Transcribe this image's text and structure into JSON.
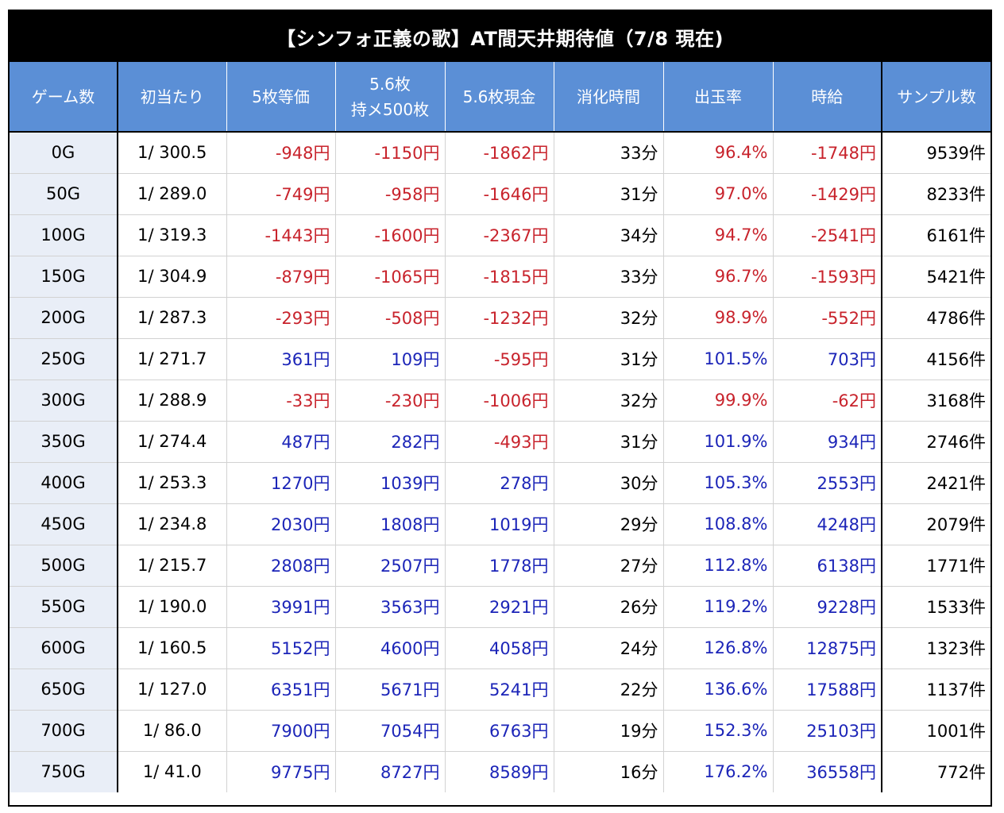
{
  "title": "【シンフォ正義の歌】AT間天井期待値（7/8 現在)",
  "headers": [
    "ゲーム数",
    "初当たり",
    "5枚等価",
    "5.6枚",
    "持メ500枚",
    "5.6枚現金",
    "消化時間",
    "出玉率",
    "時給",
    "サンプル数"
  ],
  "colors": {
    "negative": "#c8232c",
    "positive": "#1c25b8",
    "header_bg": "#5b8fd6",
    "first_col_bg": "#e9eef7"
  },
  "rows": [
    {
      "game": "0G",
      "hit": "1/ 300.5",
      "eq5": "-948円",
      "mochi": "-1150円",
      "cash": "-1862円",
      "time": "33分",
      "rate": "96.4%",
      "wage": "-1748円",
      "samples": "9539件"
    },
    {
      "game": "50G",
      "hit": "1/ 289.0",
      "eq5": "-749円",
      "mochi": "-958円",
      "cash": "-1646円",
      "time": "31分",
      "rate": "97.0%",
      "wage": "-1429円",
      "samples": "8233件"
    },
    {
      "game": "100G",
      "hit": "1/ 319.3",
      "eq5": "-1443円",
      "mochi": "-1600円",
      "cash": "-2367円",
      "time": "34分",
      "rate": "94.7%",
      "wage": "-2541円",
      "samples": "6161件"
    },
    {
      "game": "150G",
      "hit": "1/ 304.9",
      "eq5": "-879円",
      "mochi": "-1065円",
      "cash": "-1815円",
      "time": "33分",
      "rate": "96.7%",
      "wage": "-1593円",
      "samples": "5421件"
    },
    {
      "game": "200G",
      "hit": "1/ 287.3",
      "eq5": "-293円",
      "mochi": "-508円",
      "cash": "-1232円",
      "time": "32分",
      "rate": "98.9%",
      "wage": "-552円",
      "samples": "4786件"
    },
    {
      "game": "250G",
      "hit": "1/ 271.7",
      "eq5": "361円",
      "mochi": "109円",
      "cash": "-595円",
      "time": "31分",
      "rate": "101.5%",
      "wage": "703円",
      "samples": "4156件"
    },
    {
      "game": "300G",
      "hit": "1/ 288.9",
      "eq5": "-33円",
      "mochi": "-230円",
      "cash": "-1006円",
      "time": "32分",
      "rate": "99.9%",
      "wage": "-62円",
      "samples": "3168件"
    },
    {
      "game": "350G",
      "hit": "1/ 274.4",
      "eq5": "487円",
      "mochi": "282円",
      "cash": "-493円",
      "time": "31分",
      "rate": "101.9%",
      "wage": "934円",
      "samples": "2746件"
    },
    {
      "game": "400G",
      "hit": "1/ 253.3",
      "eq5": "1270円",
      "mochi": "1039円",
      "cash": "278円",
      "time": "30分",
      "rate": "105.3%",
      "wage": "2553円",
      "samples": "2421件"
    },
    {
      "game": "450G",
      "hit": "1/ 234.8",
      "eq5": "2030円",
      "mochi": "1808円",
      "cash": "1019円",
      "time": "29分",
      "rate": "108.8%",
      "wage": "4248円",
      "samples": "2079件"
    },
    {
      "game": "500G",
      "hit": "1/ 215.7",
      "eq5": "2808円",
      "mochi": "2507円",
      "cash": "1778円",
      "time": "27分",
      "rate": "112.8%",
      "wage": "6138円",
      "samples": "1771件"
    },
    {
      "game": "550G",
      "hit": "1/ 190.0",
      "eq5": "3991円",
      "mochi": "3563円",
      "cash": "2921円",
      "time": "26分",
      "rate": "119.2%",
      "wage": "9228円",
      "samples": "1533件"
    },
    {
      "game": "600G",
      "hit": "1/ 160.5",
      "eq5": "5152円",
      "mochi": "4600円",
      "cash": "4058円",
      "time": "24分",
      "rate": "126.8%",
      "wage": "12875円",
      "samples": "1323件"
    },
    {
      "game": "650G",
      "hit": "1/ 127.0",
      "eq5": "6351円",
      "mochi": "5671円",
      "cash": "5241円",
      "time": "22分",
      "rate": "136.6%",
      "wage": "17588円",
      "samples": "1137件"
    },
    {
      "game": "700G",
      "hit": "1/ 86.0",
      "eq5": "7900円",
      "mochi": "7054円",
      "cash": "6763円",
      "time": "19分",
      "rate": "152.3%",
      "wage": "25103円",
      "samples": "1001件"
    },
    {
      "game": "750G",
      "hit": "1/ 41.0",
      "eq5": "9775円",
      "mochi": "8727円",
      "cash": "8589円",
      "time": "16分",
      "rate": "176.2%",
      "wage": "36558円",
      "samples": "772件"
    }
  ]
}
